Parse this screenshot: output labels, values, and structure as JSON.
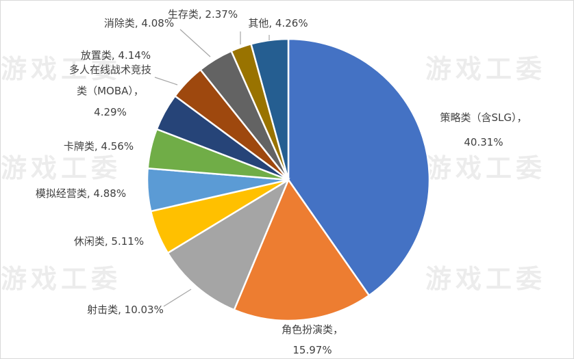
{
  "watermark": "游戏工委",
  "chart_data": {
    "type": "pie",
    "start_angle": "top, clockwise",
    "legend": "none",
    "slices": [
      {
        "name": "策略类（含SLG）",
        "value": 40.31,
        "label": [
          "策略类（含SLG），",
          "40.31%"
        ],
        "color": "#4472C4"
      },
      {
        "name": "角色扮演类",
        "value": 15.97,
        "label": [
          "角色扮演类，",
          "15.97%"
        ],
        "color": "#ED7D31"
      },
      {
        "name": "射击类",
        "value": 10.03,
        "label": [
          "射击类, 10.03%"
        ],
        "color": "#A5A5A5"
      },
      {
        "name": "休闲类",
        "value": 5.11,
        "label": [
          "休闲类, 5.11%"
        ],
        "color": "#FFC000"
      },
      {
        "name": "模拟经营类",
        "value": 4.88,
        "label": [
          "模拟经营类, 4.88%"
        ],
        "color": "#5B9BD5"
      },
      {
        "name": "卡牌类",
        "value": 4.56,
        "label": [
          "卡牌类, 4.56%"
        ],
        "color": "#70AD47"
      },
      {
        "name": "多人在线战术竞技类（MOBA）",
        "value": 4.29,
        "label": [
          "多人在线战术竞技",
          "类（MOBA），",
          "4.29%"
        ],
        "color": "#264478"
      },
      {
        "name": "放置类",
        "value": 4.14,
        "label": [
          "放置类, 4.14%"
        ],
        "color": "#9E480E"
      },
      {
        "name": "消除类",
        "value": 4.08,
        "label": [
          "消除类, 4.08%"
        ],
        "color": "#636363"
      },
      {
        "name": "生存类",
        "value": 2.37,
        "label": [
          "生存类, 2.37%"
        ],
        "color": "#997300"
      },
      {
        "name": "其他",
        "value": 4.26,
        "label": [
          "其他, 4.26%"
        ],
        "color": "#255E91"
      }
    ]
  }
}
